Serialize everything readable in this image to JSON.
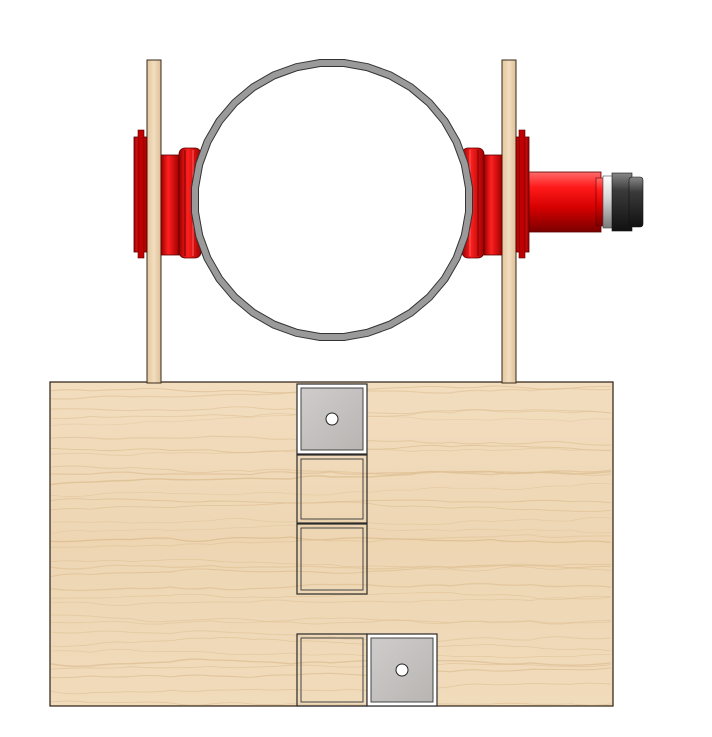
{
  "scene": {
    "description_visible_text": "",
    "colors": {
      "background": "#ffffff",
      "wood_light": "#f1dcbc",
      "wood_mid": "#e8cda4",
      "wood_grain": "#d4b07e",
      "wood_edge": "#3a2a1a",
      "ring_metal": "#a9a9a9",
      "ring_dark": "#555555",
      "red_main": "#e00000",
      "red_dark": "#8a0000",
      "red_light": "#ff4a4a",
      "steel_plate": "#c7c4c2",
      "black_knob": "#222222"
    },
    "parts": {
      "base_block": "wood-base",
      "posts": [
        "left-post",
        "right-post"
      ],
      "ring": "steel-ring",
      "bearings": [
        "left-red-bearing",
        "right-red-bearing"
      ],
      "motor": "red-motor",
      "sockets": [
        "socket-top-plate",
        "socket-empty-1",
        "socket-empty-2",
        "socket-bottom-left",
        "socket-bottom-right-plate"
      ]
    }
  }
}
